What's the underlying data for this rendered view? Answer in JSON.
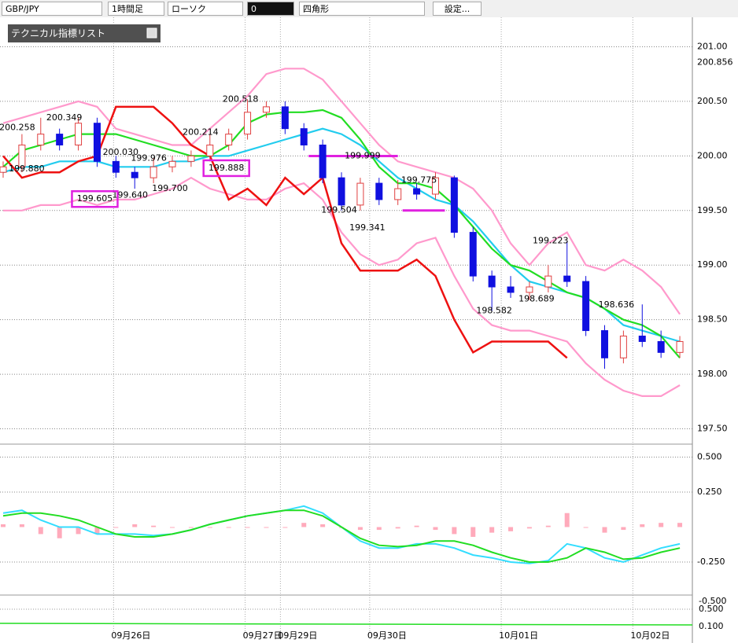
{
  "toolbar": {
    "symbol": "GBP/JPY",
    "timeframe": "1時間足",
    "chart_style": "ローソク",
    "draw_color": "0",
    "draw_shape": "四角形",
    "settings": "設定..."
  },
  "indicator_list": "テクニカル指標リスト",
  "chart_data": {
    "type": "candlestick",
    "xlim": [
      0,
      146
    ],
    "ylim": [
      197.36,
      201.27
    ],
    "xticks": [
      {
        "value": 23.5,
        "label": "09月26日"
      },
      {
        "value": 51.5,
        "label": "09月27日"
      },
      {
        "value": 59,
        "label": "09月29日"
      },
      {
        "value": 78,
        "label": "09月30日"
      },
      {
        "value": 106,
        "label": "10月01日"
      },
      {
        "value": 134,
        "label": "10月02日"
      }
    ],
    "yticks": [
      {
        "value": 201,
        "label": "201.00"
      },
      {
        "value": 200.5,
        "label": "200.50"
      },
      {
        "value": 200,
        "label": "200.00"
      },
      {
        "value": 199.5,
        "label": "199.50"
      },
      {
        "value": 199,
        "label": "199.00"
      },
      {
        "value": 198.5,
        "label": "198.50"
      },
      {
        "value": 198,
        "label": "198.00"
      },
      {
        "value": 197.5,
        "label": "197.50"
      }
    ],
    "price_marker": {
      "value": 200.856,
      "label": "200.856"
    },
    "x": [
      0,
      4,
      8,
      12,
      16,
      20,
      24,
      28,
      32,
      36,
      40,
      44,
      48,
      52,
      56,
      60,
      64,
      68,
      72,
      76,
      80,
      84,
      88,
      92,
      96,
      100,
      104,
      108,
      112,
      116,
      120,
      124,
      128,
      132,
      136,
      140,
      144
    ],
    "open": [
      199.85,
      199.9,
      200.1,
      200.2,
      200.1,
      200.3,
      199.95,
      199.85,
      199.8,
      199.9,
      199.95,
      200.0,
      200.1,
      200.2,
      200.4,
      200.45,
      200.25,
      200.1,
      199.8,
      199.55,
      199.75,
      199.6,
      199.7,
      199.65,
      199.8,
      199.3,
      198.9,
      198.8,
      198.75,
      198.8,
      198.9,
      198.85,
      198.4,
      198.15,
      198.35,
      198.3,
      198.2
    ],
    "high": [
      199.95,
      200.2,
      200.35,
      200.25,
      200.35,
      200.35,
      200.0,
      199.9,
      199.98,
      200.0,
      200.05,
      200.2,
      200.25,
      200.52,
      200.5,
      200.5,
      200.3,
      200.15,
      199.85,
      199.8,
      199.8,
      199.78,
      199.75,
      199.85,
      199.82,
      199.35,
      198.95,
      198.9,
      198.85,
      199.0,
      199.22,
      198.9,
      198.45,
      198.4,
      198.64,
      198.4,
      198.35
    ],
    "low": [
      199.8,
      199.85,
      200.05,
      200.05,
      200.05,
      199.9,
      199.8,
      199.7,
      199.75,
      199.85,
      199.9,
      199.95,
      200.05,
      200.15,
      200.35,
      200.2,
      200.05,
      199.75,
      199.5,
      199.5,
      199.55,
      199.55,
      199.6,
      199.6,
      199.25,
      198.85,
      198.58,
      198.7,
      198.68,
      198.75,
      198.8,
      198.35,
      198.05,
      198.1,
      198.25,
      198.15,
      198.15
    ],
    "close": [
      199.9,
      200.1,
      200.2,
      200.1,
      200.3,
      199.95,
      199.85,
      199.8,
      199.9,
      199.95,
      200.0,
      200.1,
      200.2,
      200.4,
      200.45,
      200.25,
      200.1,
      199.8,
      199.55,
      199.75,
      199.6,
      199.7,
      199.65,
      199.8,
      199.3,
      198.9,
      198.8,
      198.75,
      198.8,
      198.9,
      198.85,
      198.4,
      198.15,
      198.35,
      198.3,
      198.2,
      198.3
    ],
    "up_color": "#e04040",
    "down_color": "#1010e0",
    "series": [
      {
        "color": "#ff99cc",
        "values": [
          200.3,
          200.35,
          200.4,
          200.45,
          200.5,
          200.45,
          200.25,
          200.2,
          200.15,
          200.1,
          200.1,
          200.25,
          200.4,
          200.55,
          200.75,
          200.8,
          200.8,
          200.7,
          200.5,
          200.3,
          200.1,
          199.95,
          199.9,
          199.85,
          199.8,
          199.7,
          199.5,
          199.2,
          199.0,
          199.2,
          199.3,
          199.0,
          198.95,
          199.05,
          198.95,
          198.8,
          198.55
        ]
      },
      {
        "color": "#ff99cc",
        "values": [
          199.5,
          199.5,
          199.55,
          199.55,
          199.6,
          199.55,
          199.6,
          199.6,
          199.65,
          199.7,
          199.8,
          199.7,
          199.65,
          199.6,
          199.6,
          199.7,
          199.75,
          199.6,
          199.3,
          199.1,
          199.0,
          199.05,
          199.2,
          199.25,
          198.9,
          198.6,
          198.45,
          198.4,
          198.4,
          198.35,
          198.3,
          198.1,
          197.95,
          197.85,
          197.8,
          197.8,
          197.9
        ]
      },
      {
        "color": "#22ccee",
        "values": [
          199.85,
          199.9,
          199.9,
          199.95,
          199.95,
          199.95,
          199.9,
          199.9,
          199.9,
          199.95,
          199.95,
          200.0,
          200.0,
          200.05,
          200.1,
          200.15,
          200.2,
          200.25,
          200.2,
          200.1,
          199.95,
          199.8,
          199.7,
          199.6,
          199.55,
          199.4,
          199.2,
          199.0,
          198.85,
          198.8,
          198.75,
          198.7,
          198.6,
          198.45,
          198.4,
          198.35,
          198.3
        ]
      },
      {
        "color": "#22dd22",
        "values": [
          199.9,
          200.05,
          200.1,
          200.15,
          200.2,
          200.2,
          200.2,
          200.15,
          200.1,
          200.05,
          200.0,
          200.0,
          200.1,
          200.3,
          200.38,
          200.4,
          200.4,
          200.42,
          200.35,
          200.15,
          199.9,
          199.75,
          199.75,
          199.7,
          199.55,
          199.35,
          199.15,
          199.0,
          198.95,
          198.85,
          198.75,
          198.7,
          198.6,
          198.5,
          198.45,
          198.35,
          198.15
        ]
      },
      {
        "color": "#ee1111",
        "values": [
          200.0,
          199.8,
          199.85,
          199.85,
          199.95,
          200.0,
          200.45,
          200.45,
          200.45,
          200.3,
          200.1,
          200.0,
          199.6,
          199.7,
          199.55,
          199.8,
          199.65,
          199.8,
          199.2,
          198.95,
          198.95,
          198.95,
          199.05,
          198.9,
          198.5,
          198.2,
          198.3,
          198.3,
          198.3,
          198.3,
          198.15,
          null,
          null,
          null,
          null,
          null,
          null
        ]
      }
    ],
    "levels": [
      {
        "value": 199.999,
        "from": 65,
        "to": 84,
        "color": "#e020e0"
      },
      {
        "value": 199.5,
        "from": 85,
        "to": 94,
        "color": "#e020e0"
      }
    ],
    "annotations": [
      {
        "x": 3,
        "value": 200.258,
        "label": "200.258"
      },
      {
        "x": 13,
        "value": 200.349,
        "label": "200.349"
      },
      {
        "x": 5,
        "value": 199.88,
        "label": "199.880"
      },
      {
        "x": 25,
        "value": 200.03,
        "label": "200.030"
      },
      {
        "x": 31,
        "value": 199.976,
        "label": "199.976"
      },
      {
        "x": 27,
        "value": 199.64,
        "label": "199.640"
      },
      {
        "x": 19.5,
        "value": 199.605,
        "label": "199.605",
        "boxed": true
      },
      {
        "x": 35.5,
        "value": 199.7,
        "label": "199.700"
      },
      {
        "x": 42,
        "value": 200.214,
        "label": "200.214"
      },
      {
        "x": 50.5,
        "value": 200.518,
        "label": "200.518"
      },
      {
        "x": 47.5,
        "value": 199.888,
        "label": "199.888",
        "boxed": true
      },
      {
        "x": 76.5,
        "value": 199.999,
        "label": "199.999"
      },
      {
        "x": 88.5,
        "value": 199.775,
        "label": "199.775"
      },
      {
        "x": 71.5,
        "value": 199.504,
        "label": "199.504"
      },
      {
        "x": 77.5,
        "value": 199.341,
        "label": "199.341"
      },
      {
        "x": 116.5,
        "value": 199.223,
        "label": "199.223"
      },
      {
        "x": 113.5,
        "value": 198.689,
        "label": "198.689"
      },
      {
        "x": 104.5,
        "value": 198.582,
        "label": "198.582"
      },
      {
        "x": 130.5,
        "value": 198.636,
        "label": "198.636"
      }
    ]
  },
  "oscillator": {
    "type": "line",
    "ylim": [
      -0.486,
      0.593
    ],
    "yticks": [
      {
        "value": 0.5,
        "label": "0.500"
      },
      {
        "value": 0.25,
        "label": "0.250"
      },
      {
        "value": -0.25,
        "label": "-0.250"
      }
    ],
    "histogram": {
      "color": "#ffaabb",
      "values": [
        0.02,
        0.02,
        -0.05,
        -0.08,
        -0.05,
        -0.05,
        0,
        0.02,
        0.01,
        0,
        0,
        0,
        0,
        0,
        0,
        0,
        0.03,
        0.02,
        0,
        -0.02,
        -0.02,
        -0.01,
        0.01,
        -0.02,
        -0.05,
        -0.07,
        -0.04,
        -0.03,
        -0.01,
        0.01,
        0.1,
        0,
        -0.04,
        -0.02,
        0.02,
        0.03,
        0.03
      ]
    },
    "series": [
      {
        "color": "#33ddff",
        "values": [
          0.1,
          0.12,
          0.05,
          0.0,
          0.0,
          -0.05,
          -0.05,
          -0.05,
          -0.06,
          -0.05,
          -0.02,
          0.02,
          0.05,
          0.08,
          0.1,
          0.12,
          0.15,
          0.1,
          0.0,
          -0.1,
          -0.15,
          -0.15,
          -0.12,
          -0.12,
          -0.15,
          -0.2,
          -0.22,
          -0.25,
          -0.26,
          -0.24,
          -0.12,
          -0.15,
          -0.22,
          -0.25,
          -0.2,
          -0.15,
          -0.12
        ]
      },
      {
        "color": "#22dd22",
        "values": [
          0.08,
          0.1,
          0.1,
          0.08,
          0.05,
          0.0,
          -0.05,
          -0.07,
          -0.07,
          -0.05,
          -0.02,
          0.02,
          0.05,
          0.08,
          0.1,
          0.12,
          0.12,
          0.08,
          0.0,
          -0.08,
          -0.13,
          -0.14,
          -0.13,
          -0.1,
          -0.1,
          -0.13,
          -0.18,
          -0.22,
          -0.25,
          -0.25,
          -0.22,
          -0.15,
          -0.18,
          -0.23,
          -0.22,
          -0.18,
          -0.15
        ]
      }
    ]
  },
  "bottom_labels": [
    "-0.500",
    "0.500",
    "0.100"
  ]
}
